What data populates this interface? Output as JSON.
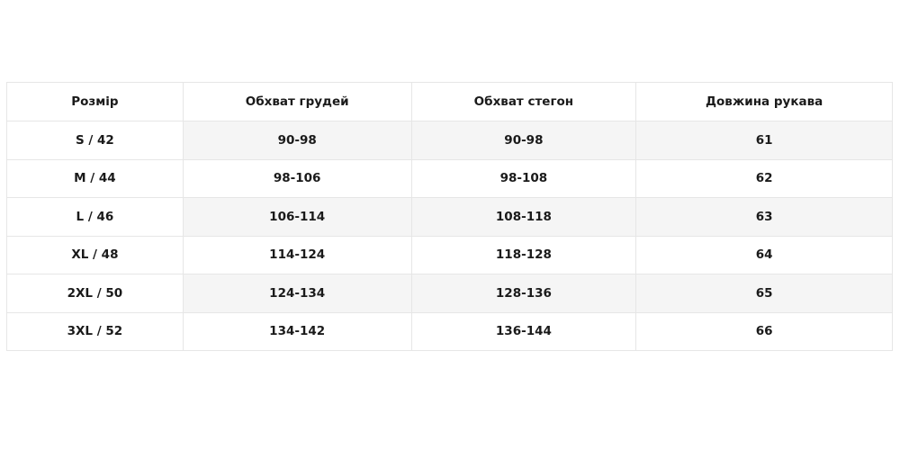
{
  "table": {
    "headers": [
      "Розмір",
      "Обхват грудей",
      "Обхват стегон",
      "Довжина рукава"
    ],
    "rows": [
      [
        "S / 42",
        "90-98",
        "90-98",
        "61"
      ],
      [
        "M / 44",
        "98-106",
        "98-108",
        "62"
      ],
      [
        "L / 46",
        "106-114",
        "108-118",
        "63"
      ],
      [
        "XL / 48",
        "114-124",
        "118-128",
        "64"
      ],
      [
        "2XL / 50",
        "124-134",
        "128-136",
        "65"
      ],
      [
        "3XL / 52",
        "134-142",
        "136-144",
        "66"
      ]
    ]
  },
  "colors": {
    "border": "#e6e6e6",
    "stripe": "#f5f5f5",
    "text": "#1a1a1a"
  }
}
